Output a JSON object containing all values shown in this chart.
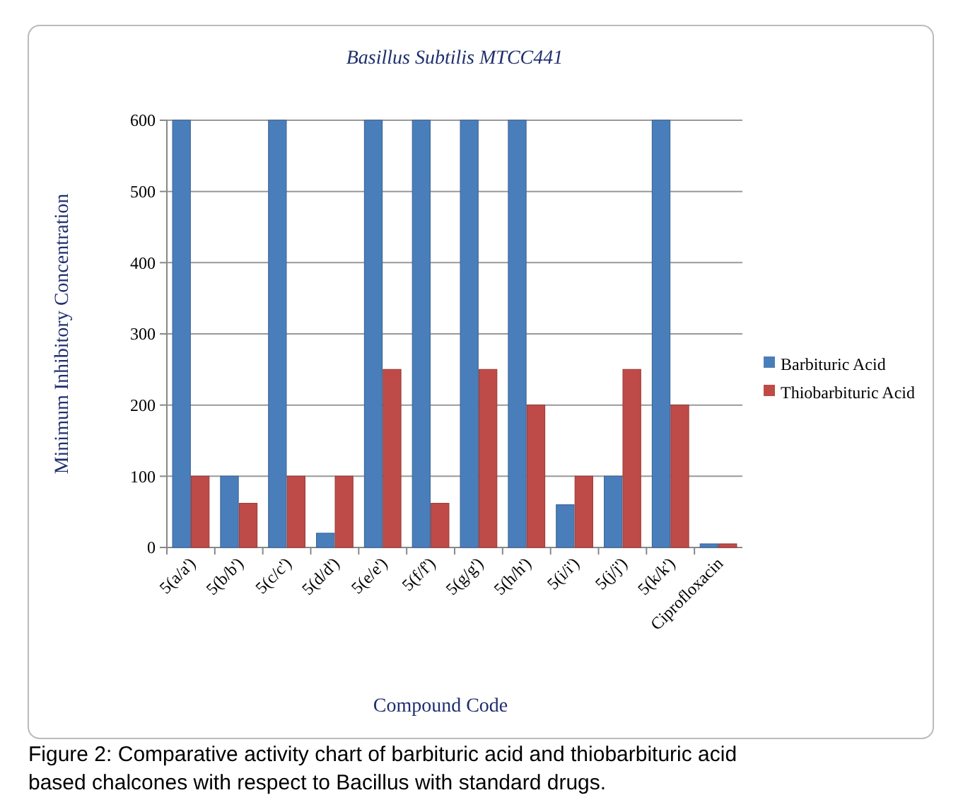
{
  "chart_data": {
    "type": "bar",
    "title": "Basillus Subtilis MTCC441",
    "xlabel": "Compound Code",
    "ylabel": "Minimum Inhibitory Concentration",
    "categories": [
      "5(a/a')",
      "5(b/b')",
      "5(c/c')",
      "5(d/d')",
      "5(e/e')",
      "5(f/f')",
      "5(g/g')",
      "5(h/h')",
      "5(i/i')",
      "5(j/j')",
      "5(k/k')",
      "Ciprofloxacin"
    ],
    "series": [
      {
        "name": "Barbituric Acid",
        "color": "#4a7ebb",
        "values": [
          600,
          100,
          600,
          20,
          600,
          600,
          600,
          600,
          60,
          100,
          600,
          5
        ]
      },
      {
        "name": "Thiobarbituric Acid",
        "color": "#be4b48",
        "values": [
          100,
          62,
          100,
          100,
          250,
          62,
          250,
          200,
          100,
          250,
          200,
          5
        ]
      }
    ],
    "ylim": [
      0,
      600
    ],
    "yticks": [
      0,
      100,
      200,
      300,
      400,
      500,
      600
    ],
    "grid": "y",
    "legend": "right",
    "annotations": [
      "Figure 2: Comparative activity chart of barbituric acid and thiobarbituric acid based chalcones with respect to Bacillus with standard drugs."
    ]
  }
}
